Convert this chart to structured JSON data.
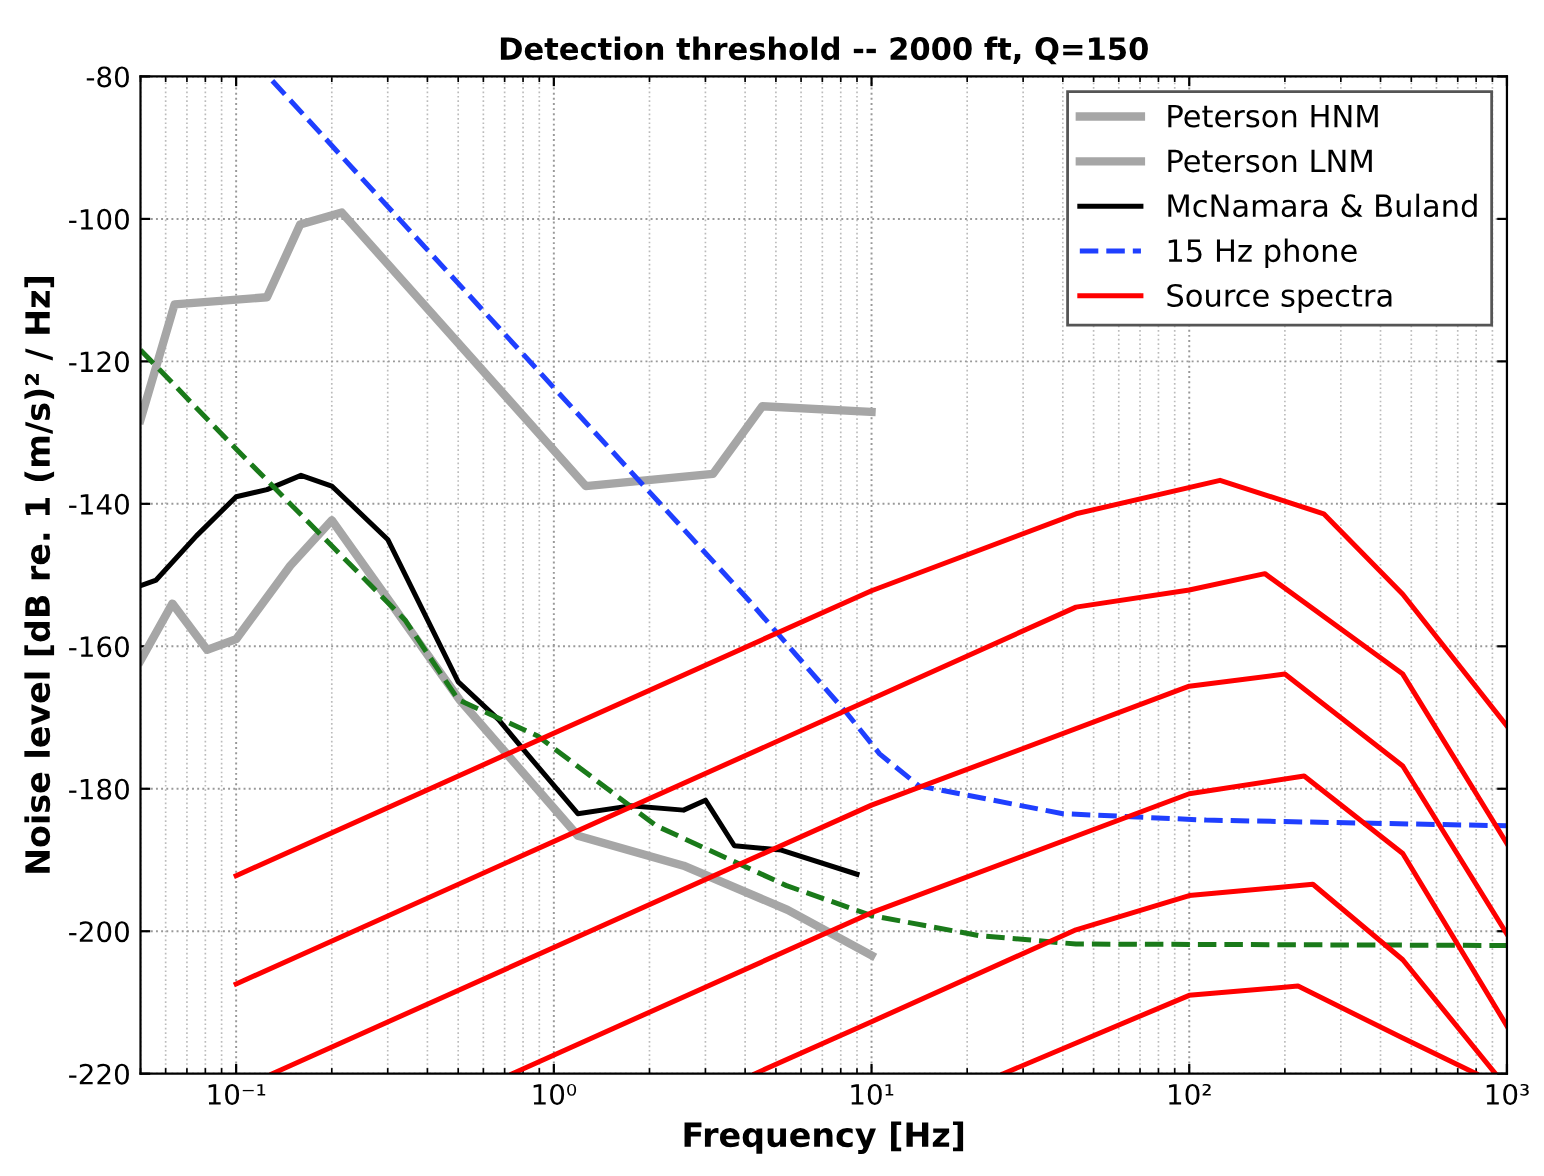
{
  "chart_data": {
    "type": "line",
    "title": "Detection threshold -- 2000 ft, Q=150",
    "xlabel": "Frequency [Hz]",
    "ylabel": "Noise level [dB re. 1 (m/s)² / Hz]",
    "log": "x",
    "xlim": [
      0.05,
      1000
    ],
    "ylim": [
      -220,
      -80
    ],
    "xticks": [
      {
        "value": 0.1,
        "label": "10⁻¹"
      },
      {
        "value": 1,
        "label": "10⁰"
      },
      {
        "value": 10,
        "label": "10¹"
      },
      {
        "value": 100,
        "label": "10²"
      },
      {
        "value": 1000,
        "label": "10³"
      }
    ],
    "yticks": [
      -220,
      -200,
      -180,
      -160,
      -140,
      -120,
      -100,
      -80
    ],
    "grid": true,
    "legend": "top right",
    "line_style": "solid",
    "marker": "none",
    "series": [
      {
        "name": "Peterson HNM",
        "color": "#a6a6a6",
        "x": [
          0.05,
          0.064,
          0.125,
          0.159,
          0.215,
          1.26,
          3.17,
          4.53,
          10
        ],
        "values": [
          -128.2,
          -112,
          -111,
          -100.8,
          -99.1,
          -137.5,
          -135.8,
          -126.3,
          -127.1
        ]
      },
      {
        "name": "Peterson LNM",
        "color": "#a6a6a6",
        "x": [
          0.05,
          0.063,
          0.081,
          0.1,
          0.148,
          0.2,
          0.505,
          1.19,
          2.56,
          5.44,
          10
        ],
        "values": [
          -162,
          -154,
          -160.5,
          -159,
          -148.7,
          -142.3,
          -167.5,
          -186.6,
          -190.8,
          -197,
          -203.4
        ]
      },
      {
        "name": "McNamara & Buland",
        "color": "#000000",
        "x": [
          0.05,
          0.056,
          0.075,
          0.1,
          0.125,
          0.16,
          0.2,
          0.3,
          0.5,
          0.67,
          0.82,
          1.19,
          1.74,
          2.56,
          3.0,
          3.7,
          5.2,
          9.0
        ],
        "values": [
          -151.5,
          -150.7,
          -144.5,
          -139,
          -138,
          -136,
          -137.5,
          -145,
          -165,
          -170.3,
          -175,
          -183.5,
          -182.4,
          -183,
          -181.6,
          -188,
          -188.6,
          -192
        ]
      },
      {
        "name": "15 Hz phone",
        "color": "#1f3fff",
        "line_style": "dashed",
        "x": [
          0.13,
          4.1,
          8.4,
          10.6,
          14.1,
          40,
          113,
          1000
        ],
        "values": [
          -80.6,
          -153.5,
          -169.5,
          -175.1,
          -179.6,
          -183.5,
          -184.4,
          -185.2
        ]
      },
      {
        "color": "#1a7a1a",
        "line_style": "dashed",
        "x": [
          0.05,
          0.1,
          0.2,
          0.34,
          0.5,
          0.89,
          2.1,
          5.4,
          10,
          21.7,
          44,
          1000
        ],
        "values": [
          -118.4,
          -132.3,
          -145.9,
          -156.3,
          -167.5,
          -172.6,
          -185.2,
          -193.6,
          -197.8,
          -200.6,
          -201.8,
          -202
        ]
      },
      {
        "name": "Source spectra",
        "color": "#ff0000",
        "x": [
          0.1,
          10,
          44,
          125,
          265,
          470,
          1000
        ],
        "values": [
          -192.2,
          -152.2,
          -141.4,
          -136.7,
          -141.4,
          -152.7,
          -171.2
        ]
      },
      {
        "color": "#ff0000",
        "x": [
          0.1,
          10,
          44,
          100,
          173,
          470,
          1000
        ],
        "values": [
          -207.4,
          -167.4,
          -154.5,
          -152.1,
          -149.8,
          -163.9,
          -187.7
        ]
      },
      {
        "color": "#ff0000",
        "x": [
          0.13,
          10,
          100,
          200,
          470,
          1000
        ],
        "values": [
          -220,
          -182.3,
          -165.6,
          -163.9,
          -176.8,
          -200.4
        ]
      },
      {
        "color": "#ff0000",
        "x": [
          0.74,
          10,
          100,
          230,
          470,
          1000
        ],
        "values": [
          -220,
          -197.4,
          -180.7,
          -178.2,
          -189.1,
          -213.3
        ]
      },
      {
        "color": "#ff0000",
        "x": [
          4.3,
          10,
          44,
          100,
          245,
          470,
          920
        ],
        "values": [
          -220,
          -212.7,
          -199.8,
          -195,
          -193.4,
          -204,
          -220
        ]
      },
      {
        "color": "#ff0000",
        "x": [
          26,
          100,
          220,
          470,
          800
        ],
        "values": [
          -220,
          -209,
          -207.7,
          -215,
          -220
        ]
      }
    ]
  }
}
